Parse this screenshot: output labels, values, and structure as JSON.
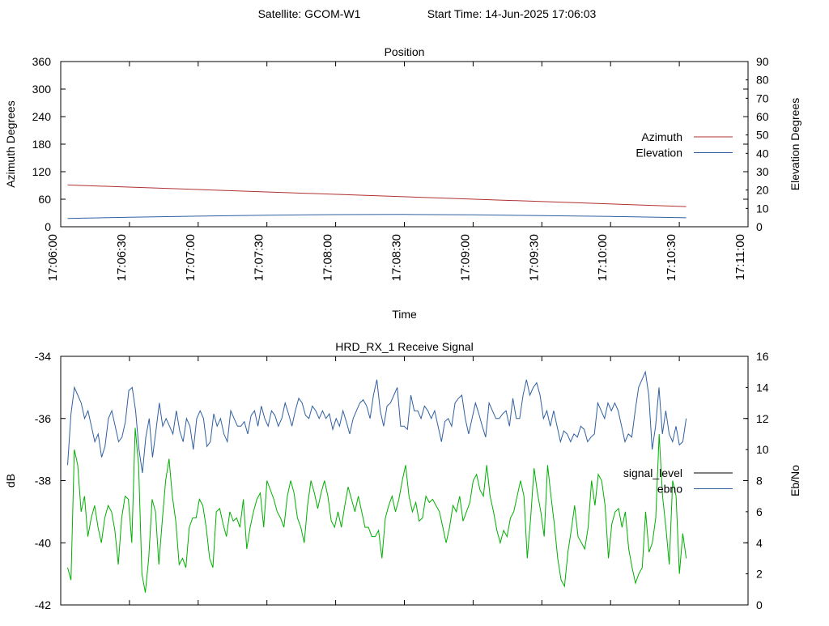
{
  "header": {
    "satellite_label": "Satellite: GCOM-W1",
    "start_time_label": "Start Time: 14-Jun-2025 17:06:03"
  },
  "chart_data": [
    {
      "type": "line",
      "title": "Position",
      "xlabel": "Time",
      "ylabel": "Azimuth Degrees",
      "y2label": "Elevation Degrees",
      "x_ticks": [
        "17:06:00",
        "17:06:30",
        "17:07:00",
        "17:07:30",
        "17:08:00",
        "17:08:30",
        "17:09:00",
        "17:09:30",
        "17:10:00",
        "17:10:30",
        "17:11:00"
      ],
      "xlim": [
        "17:06:00",
        "17:11:00"
      ],
      "ylim": [
        0,
        360
      ],
      "y_ticks": [
        0,
        60,
        120,
        180,
        240,
        300,
        360
      ],
      "y2lim": [
        0,
        90
      ],
      "y2_ticks": [
        0,
        10,
        20,
        30,
        40,
        50,
        60,
        70,
        80,
        90
      ],
      "grid": false,
      "legend_position": "right",
      "series": [
        {
          "name": "Azimuth",
          "axis": "left",
          "color": "#b03030",
          "x": [
            "17:06:03",
            "17:10:33"
          ],
          "values": [
            91,
            44
          ]
        },
        {
          "name": "Elevation",
          "axis": "right",
          "color": "#3060a0",
          "x": [
            "17:06:03",
            "17:06:30",
            "17:07:00",
            "17:07:30",
            "17:08:00",
            "17:08:30",
            "17:09:00",
            "17:09:30",
            "17:10:00",
            "17:10:33"
          ],
          "values": [
            4.5,
            5.2,
            5.8,
            6.3,
            6.6,
            6.7,
            6.5,
            6.1,
            5.6,
            4.9
          ]
        }
      ]
    },
    {
      "type": "line",
      "title": "HRD_RX_1 Receive Signal",
      "ylabel": "dB",
      "y2label": "Eb/No",
      "xlim": [
        "17:06:00",
        "17:11:00"
      ],
      "ylim": [
        -42,
        -34
      ],
      "y_ticks": [
        -42,
        -40,
        -38,
        -36,
        -34
      ],
      "y2lim": [
        0,
        16
      ],
      "y2_ticks": [
        0,
        2,
        4,
        6,
        8,
        10,
        12,
        14,
        16
      ],
      "grid": false,
      "legend_position": "right",
      "x_start": "17:06:03",
      "x_end": "17:10:33",
      "series": [
        {
          "name": "signal_level",
          "axis": "left",
          "color": "#000000",
          "legend_color": "#000000",
          "plot_color": "#00b000",
          "values": [
            -40.8,
            -41.2,
            -37.0,
            -37.5,
            -39.0,
            -38.5,
            -39.8,
            -39.2,
            -38.8,
            -39.5,
            -40.0,
            -39.2,
            -38.8,
            -39.0,
            -39.6,
            -40.7,
            -39.2,
            -38.5,
            -38.6,
            -40.0,
            -36.3,
            -37.5,
            -41.0,
            -41.6,
            -40.5,
            -38.6,
            -39.0,
            -40.7,
            -39.3,
            -38.0,
            -37.3,
            -38.5,
            -39.3,
            -40.7,
            -40.5,
            -40.8,
            -39.5,
            -39.2,
            -39.2,
            -38.6,
            -38.8,
            -39.5,
            -40.5,
            -40.8,
            -39.0,
            -38.9,
            -39.4,
            -39.8,
            -39.0,
            -39.3,
            -39.2,
            -39.5,
            -38.6,
            -40.2,
            -39.5,
            -39.0,
            -38.6,
            -38.4,
            -39.5,
            -38.0,
            -38.3,
            -38.6,
            -39.0,
            -39.2,
            -39.5,
            -38.5,
            -38.0,
            -38.4,
            -39.2,
            -39.5,
            -40.0,
            -38.8,
            -38.0,
            -38.4,
            -38.9,
            -38.4,
            -38.0,
            -38.5,
            -39.3,
            -39.5,
            -39.0,
            -39.5,
            -38.8,
            -38.2,
            -38.6,
            -39.0,
            -38.5,
            -39.0,
            -39.5,
            -39.5,
            -39.8,
            -39.8,
            -39.6,
            -40.5,
            -39.2,
            -38.8,
            -38.5,
            -39.0,
            -38.6,
            -38.0,
            -37.5,
            -38.5,
            -39.0,
            -38.7,
            -39.3,
            -39.2,
            -38.5,
            -38.7,
            -38.6,
            -38.8,
            -39.0,
            -39.5,
            -40.0,
            -39.5,
            -38.8,
            -39.0,
            -38.5,
            -39.3,
            -39.0,
            -38.7,
            -38.0,
            -37.8,
            -38.3,
            -38.5,
            -37.5,
            -38.5,
            -39.0,
            -39.6,
            -40.0,
            -39.6,
            -39.8,
            -39.2,
            -39.0,
            -38.5,
            -38.0,
            -38.5,
            -40.5,
            -39.2,
            -37.6,
            -38.4,
            -39.0,
            -39.8,
            -37.5,
            -38.5,
            -39.4,
            -40.5,
            -41.2,
            -41.4,
            -40.3,
            -39.6,
            -38.8,
            -39.8,
            -40.0,
            -40.2,
            -39.5,
            -38.0,
            -38.8,
            -37.8,
            -38.0,
            -38.8,
            -40.5,
            -39.4,
            -39.0,
            -38.9,
            -39.5,
            -39.0,
            -40.2,
            -40.8,
            -41.3,
            -41.0,
            -40.8,
            -39.0,
            -40.3,
            -40.0,
            -39.2,
            -36.5,
            -38.5,
            -39.5,
            -40.7,
            -38.0,
            -38.5,
            -41.0,
            -39.7,
            -40.5
          ]
        },
        {
          "name": "ebno",
          "axis": "right",
          "color": "#3060a0",
          "values": [
            9.0,
            12.3,
            14.0,
            13.5,
            13.0,
            12.0,
            12.5,
            11.5,
            10.5,
            11.0,
            9.5,
            10.2,
            12.0,
            12.5,
            11.5,
            10.5,
            10.8,
            11.8,
            13.8,
            14.0,
            12.5,
            10.0,
            8.5,
            10.8,
            12.0,
            9.5,
            11.2,
            13.0,
            11.5,
            12.0,
            11.5,
            11.0,
            12.5,
            11.2,
            10.5,
            12.0,
            11.5,
            10.0,
            12.0,
            12.5,
            12.0,
            10.2,
            10.5,
            12.3,
            11.5,
            12.0,
            11.0,
            10.5,
            12.5,
            12.0,
            11.5,
            11.5,
            11.8,
            11.0,
            12.2,
            12.5,
            11.5,
            12.8,
            12.0,
            11.5,
            12.5,
            12.2,
            11.5,
            12.0,
            13.0,
            12.3,
            11.5,
            12.5,
            13.3,
            13.0,
            12.2,
            12.0,
            12.8,
            12.5,
            12.0,
            12.5,
            12.0,
            12.3,
            11.3,
            12.0,
            11.5,
            12.5,
            11.8,
            11.0,
            12.0,
            12.5,
            13.0,
            13.2,
            12.8,
            12.0,
            13.5,
            14.5,
            12.5,
            11.5,
            12.8,
            13.0,
            13.5,
            14.0,
            11.5,
            11.5,
            11.3,
            13.5,
            12.5,
            12.5,
            12.0,
            12.8,
            12.5,
            12.0,
            12.5,
            11.5,
            10.5,
            11.8,
            12.0,
            11.5,
            13.0,
            13.3,
            13.5,
            12.0,
            11.0,
            12.0,
            13.0,
            12.3,
            11.5,
            10.8,
            13.0,
            12.5,
            12.0,
            12.0,
            12.3,
            12.5,
            11.5,
            13.3,
            12.0,
            12.0,
            13.5,
            14.5,
            13.5,
            14.0,
            14.3,
            13.5,
            12.0,
            12.5,
            11.5,
            12.5,
            11.5,
            10.5,
            11.2,
            11.0,
            10.5,
            11.0,
            10.8,
            11.5,
            11.3,
            10.5,
            10.8,
            11.0,
            13.0,
            12.5,
            12.0,
            13.0,
            12.5,
            13.0,
            12.5,
            11.5,
            10.5,
            11.0,
            10.8,
            12.5,
            14.0,
            14.5,
            15.0,
            13.5,
            10.0,
            11.5,
            14.0,
            11.0,
            12.5,
            11.0,
            10.5,
            11.5,
            10.3,
            10.5,
            12.0
          ]
        }
      ]
    }
  ]
}
